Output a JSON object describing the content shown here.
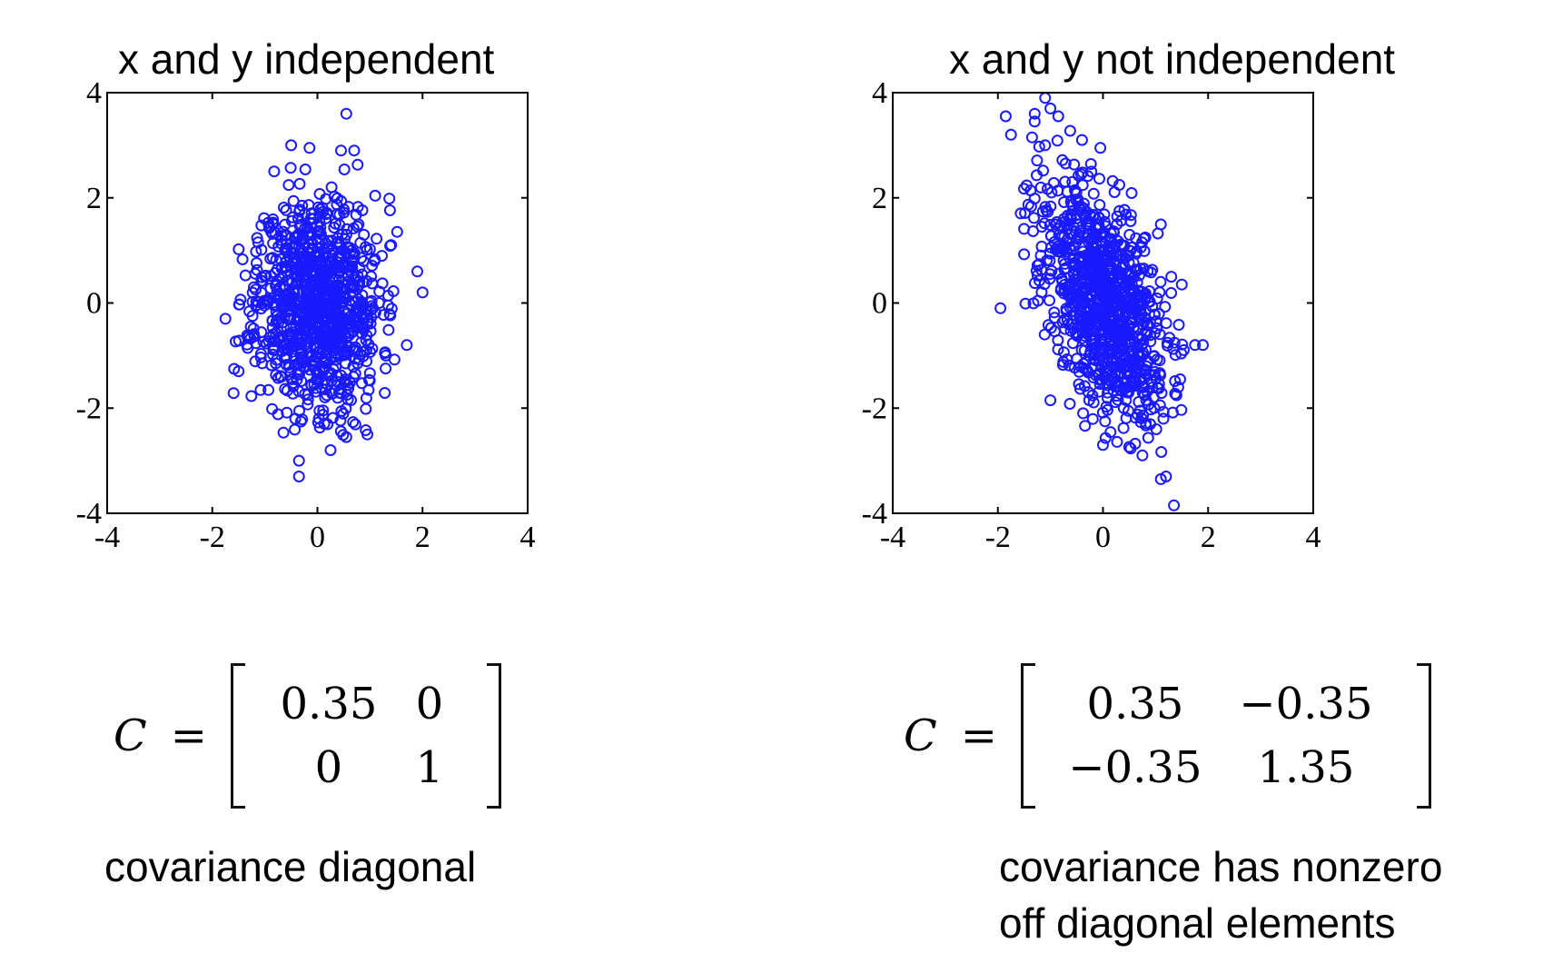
{
  "chart_data": [
    {
      "type": "scatter",
      "title": "x and y independent",
      "xlim": [
        -4,
        4
      ],
      "ylim": [
        -4,
        4
      ],
      "xticks": [
        -4,
        -2,
        0,
        2,
        4
      ],
      "yticks": [
        -4,
        -2,
        0,
        2,
        4
      ],
      "grid": false,
      "marker": "open-circle",
      "color": "#1a1aff",
      "covariance": [
        [
          0.35,
          0
        ],
        [
          0,
          1
        ]
      ],
      "n_points": 1000,
      "seed": 11,
      "highlight_points": [
        [
          0.55,
          3.6
        ],
        [
          -0.5,
          3.0
        ],
        [
          -0.15,
          2.95
        ],
        [
          0.45,
          2.9
        ],
        [
          0.7,
          2.9
        ],
        [
          1.9,
          0.6
        ],
        [
          2.0,
          0.2
        ],
        [
          1.7,
          -0.8
        ],
        [
          -1.75,
          -0.3
        ],
        [
          -1.5,
          -1.3
        ],
        [
          0.95,
          -2.5
        ],
        [
          -0.35,
          -3.0
        ],
        [
          -0.35,
          -3.3
        ],
        [
          0.25,
          -2.8
        ],
        [
          0.55,
          -2.55
        ]
      ],
      "matrix": {
        "lhs": "C",
        "eq": "=",
        "rows": [
          [
            "0.35",
            "0"
          ],
          [
            "0",
            "1"
          ]
        ]
      },
      "caption": "covariance diagonal"
    },
    {
      "type": "scatter",
      "title": "x and y not independent",
      "xlim": [
        -4,
        4
      ],
      "ylim": [
        -4,
        4
      ],
      "xticks": [
        -4,
        -2,
        0,
        2,
        4
      ],
      "yticks": [
        -4,
        -2,
        0,
        2,
        4
      ],
      "grid": false,
      "marker": "open-circle",
      "color": "#1a1aff",
      "covariance": [
        [
          0.35,
          -0.35
        ],
        [
          -0.35,
          1.35
        ]
      ],
      "n_points": 1000,
      "seed": 23,
      "highlight_points": [
        [
          -1.1,
          3.9
        ],
        [
          -1.0,
          3.7
        ],
        [
          -1.3,
          3.6
        ],
        [
          -1.85,
          3.55
        ],
        [
          -1.3,
          3.45
        ],
        [
          -0.85,
          3.55
        ],
        [
          -1.75,
          3.2
        ],
        [
          -1.35,
          3.15
        ],
        [
          -1.1,
          3.0
        ],
        [
          -0.4,
          3.1
        ],
        [
          -0.05,
          2.95
        ],
        [
          1.3,
          0.5
        ],
        [
          1.5,
          0.35
        ],
        [
          1.9,
          -0.8
        ],
        [
          1.75,
          -0.8
        ],
        [
          1.1,
          -3.35
        ],
        [
          1.2,
          -3.3
        ],
        [
          1.35,
          -3.85
        ],
        [
          0.75,
          -2.9
        ],
        [
          0.0,
          -2.7
        ],
        [
          -1.95,
          -0.1
        ],
        [
          -1.0,
          -1.85
        ]
      ],
      "matrix": {
        "lhs": "C",
        "eq": "=",
        "rows": [
          [
            "0.35",
            "−0.35"
          ],
          [
            "−0.35",
            "1.35"
          ]
        ]
      },
      "caption_lines": [
        "covariance has nonzero",
        "off diagonal elements"
      ]
    }
  ]
}
